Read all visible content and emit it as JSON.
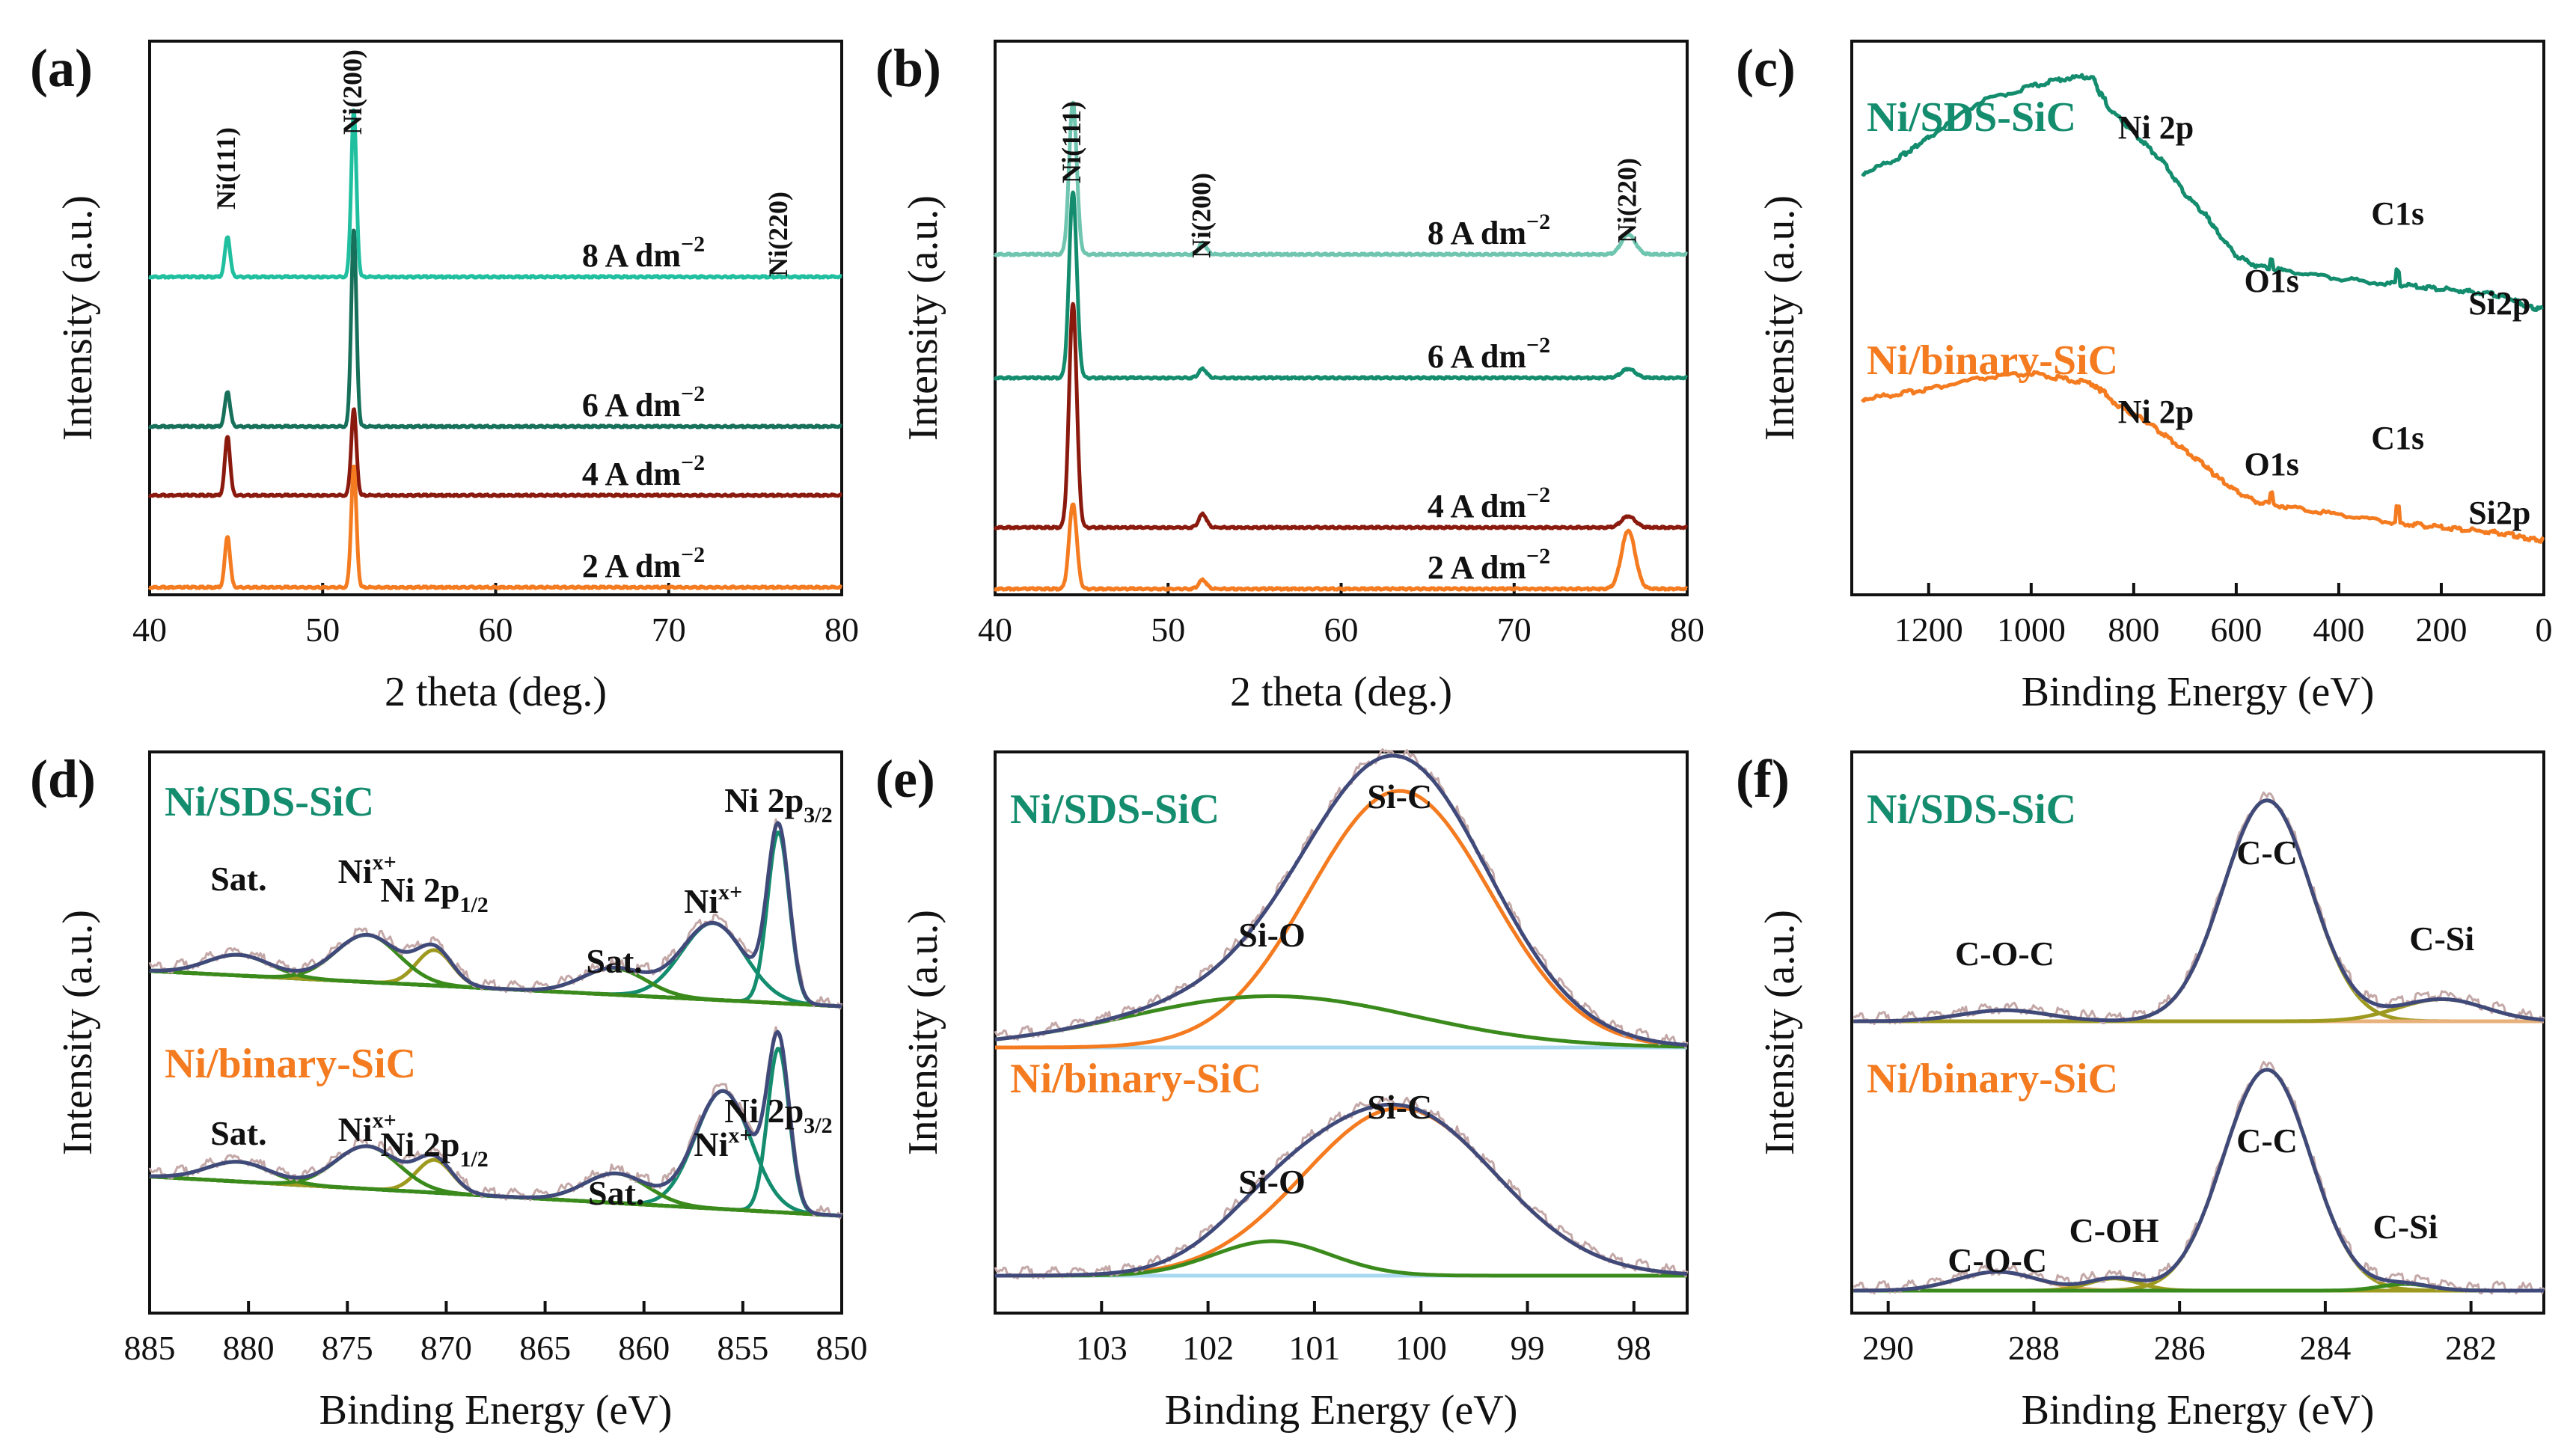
{
  "figure": {
    "panels": [
      {
        "id": "a",
        "label": "(a)",
        "xlabel": "2 theta (deg.)",
        "ylabel": "Intensity (a.u.)"
      },
      {
        "id": "b",
        "label": "(b)",
        "xlabel": "2 theta (deg.)",
        "ylabel": "Intensity (a.u.)"
      },
      {
        "id": "c",
        "label": "(c)",
        "xlabel": "Binding Energy (eV)",
        "ylabel": "Intensity (a.u.)"
      },
      {
        "id": "d",
        "label": "(d)",
        "xlabel": "Binding Energy (eV)",
        "ylabel": "Intensity (a.u.)"
      },
      {
        "id": "e",
        "label": "(e)",
        "xlabel": "Binding Energy (eV)",
        "ylabel": "Intensity (a.u.)"
      },
      {
        "id": "f",
        "label": "(f)",
        "xlabel": "Binding Energy (eV)",
        "ylabel": "Intensity (a.u.)"
      }
    ]
  },
  "colors": {
    "teal": "#1fbf9f",
    "darkteal": "#17705a",
    "darkred": "#8b1a0e",
    "orange": "#f47b20",
    "lightteal": "#6fc5b0",
    "seagreen": "#148c6e",
    "fitnavy": "#404a7a",
    "green": "#3a8a1c",
    "olive": "#9e9a20",
    "lightblue": "#a8d8f0",
    "raw": "#c4a8a8",
    "gray": "#b8bcbc",
    "salmon": "#e8b07a"
  },
  "chart_data": [
    {
      "panel": "a",
      "type": "line",
      "title": "",
      "xlabel": "2 theta (deg.)",
      "ylabel": "Intensity (a.u.)",
      "xlim": [
        40,
        80
      ],
      "xticks": [
        "40",
        "50",
        "60",
        "70",
        "80"
      ],
      "peak_labels": [
        "Ni(111)",
        "Ni(200)",
        "Ni(220)"
      ],
      "peak_positions": [
        44.5,
        51.8,
        76.4
      ],
      "series": [
        {
          "name": "8 A dm−2",
          "label": "8 A dm",
          "sup": "−2",
          "color": "#1fbf9f",
          "peaks": [
            {
              "x": 44.5,
              "h": 0.15
            },
            {
              "x": 51.8,
              "h": 0.62
            }
          ]
        },
        {
          "name": "6 A dm−2",
          "label": "6 A dm",
          "sup": "−2",
          "color": "#17705a",
          "peaks": [
            {
              "x": 44.5,
              "h": 0.13
            },
            {
              "x": 51.8,
              "h": 0.73
            }
          ]
        },
        {
          "name": "4 A dm−2",
          "label": "4 A dm",
          "sup": "−2",
          "color": "#8b1a0e",
          "peaks": [
            {
              "x": 44.5,
              "h": 0.22
            },
            {
              "x": 51.8,
              "h": 0.32
            }
          ]
        },
        {
          "name": "2 A dm−2",
          "label": "2 A dm",
          "sup": "−2",
          "color": "#f47b20",
          "peaks": [
            {
              "x": 44.5,
              "h": 0.19
            },
            {
              "x": 51.8,
              "h": 0.45
            }
          ]
        }
      ]
    },
    {
      "panel": "b",
      "type": "line",
      "title": "",
      "xlabel": "2 theta (deg.)",
      "ylabel": "Intensity (a.u.)",
      "xlim": [
        40,
        80
      ],
      "xticks": [
        "40",
        "50",
        "60",
        "70",
        "80"
      ],
      "peak_labels": [
        "Ni(111)",
        "Ni(200)",
        "Ni(220)"
      ],
      "peak_positions": [
        44.5,
        52.0,
        76.6
      ],
      "series": [
        {
          "name": "8 A dm−2",
          "label": "8 A dm",
          "sup": "−2",
          "color": "#6fc5b0",
          "peaks": [
            {
              "x": 44.5,
              "h": 0.68
            },
            {
              "x": 52.0,
              "h": 0.05
            },
            {
              "x": 76.6,
              "h": 0.09
            }
          ]
        },
        {
          "name": "6 A dm−2",
          "label": "6 A dm",
          "sup": "−2",
          "color": "#148c6e",
          "peaks": [
            {
              "x": 44.5,
              "h": 0.83
            },
            {
              "x": 52.0,
              "h": 0.04
            },
            {
              "x": 76.6,
              "h": 0.04
            }
          ]
        },
        {
          "name": "4 A dm−2",
          "label": "4 A dm",
          "sup": "−2",
          "color": "#8b1a0e",
          "peaks": [
            {
              "x": 44.5,
              "h": 1.0
            },
            {
              "x": 52.0,
              "h": 0.06
            },
            {
              "x": 76.6,
              "h": 0.05
            }
          ]
        },
        {
          "name": "2 A dm−2",
          "label": "2 A dm",
          "sup": "−2",
          "color": "#f47b20",
          "peaks": [
            {
              "x": 44.5,
              "h": 0.38
            },
            {
              "x": 52.0,
              "h": 0.04
            },
            {
              "x": 76.6,
              "h": 0.26
            }
          ]
        }
      ]
    },
    {
      "panel": "c",
      "type": "line",
      "title": "",
      "xlabel": "Binding Energy (eV)",
      "ylabel": "Intensity (a.u.)",
      "xlim": [
        1350,
        0
      ],
      "xticks": [
        "1200",
        "1000",
        "800",
        "600",
        "400",
        "200",
        "0"
      ],
      "series": [
        {
          "name": "Ni/SDS-SiC",
          "color": "#148c6e",
          "points": [
            [
              1330,
              0.8
            ],
            [
              1260,
              0.83
            ],
            [
              1230,
              0.85
            ],
            [
              1200,
              0.87
            ],
            [
              1100,
              0.94
            ],
            [
              1000,
              0.97
            ],
            [
              940,
              0.985
            ],
            [
              880,
              0.99
            ],
            [
              860,
              0.94
            ],
            [
              820,
              0.9
            ],
            [
              780,
              0.86
            ],
            [
              740,
              0.82
            ],
            [
              700,
              0.76
            ],
            [
              660,
              0.72
            ],
            [
              640,
              0.69
            ],
            [
              600,
              0.64
            ],
            [
              560,
              0.62
            ],
            [
              500,
              0.61
            ],
            [
              400,
              0.595
            ],
            [
              300,
              0.585
            ],
            [
              250,
              0.58
            ],
            [
              200,
              0.575
            ],
            [
              150,
              0.57
            ],
            [
              100,
              0.565
            ],
            [
              60,
              0.555
            ],
            [
              30,
              0.54
            ],
            [
              0,
              0.535
            ]
          ],
          "annotations": [
            {
              "text": "Ni 2p",
              "x": 860
            },
            {
              "text": "O1s",
              "x": 531
            },
            {
              "text": "C1s",
              "x": 285
            },
            {
              "text": "Si2p",
              "x": 101
            }
          ]
        },
        {
          "name": "Ni/binary-SiC",
          "color": "#f47b20",
          "points": [
            [
              1330,
              0.36
            ],
            [
              1260,
              0.37
            ],
            [
              1200,
              0.38
            ],
            [
              1100,
              0.4
            ],
            [
              1000,
              0.41
            ],
            [
              940,
              0.4
            ],
            [
              880,
              0.39
            ],
            [
              860,
              0.37
            ],
            [
              820,
              0.34
            ],
            [
              780,
              0.32
            ],
            [
              740,
              0.29
            ],
            [
              700,
              0.26
            ],
            [
              660,
              0.23
            ],
            [
              640,
              0.21
            ],
            [
              600,
              0.18
            ],
            [
              560,
              0.16
            ],
            [
              500,
              0.15
            ],
            [
              400,
              0.135
            ],
            [
              300,
              0.12
            ],
            [
              250,
              0.115
            ],
            [
              200,
              0.11
            ],
            [
              150,
              0.105
            ],
            [
              100,
              0.1
            ],
            [
              60,
              0.095
            ],
            [
              30,
              0.088
            ],
            [
              0,
              0.085
            ]
          ],
          "annotations": [
            {
              "text": "Ni 2p",
              "x": 860
            },
            {
              "text": "O1s",
              "x": 531
            },
            {
              "text": "C1s",
              "x": 285
            },
            {
              "text": "Si2p",
              "x": 101
            }
          ]
        }
      ]
    },
    {
      "panel": "d",
      "type": "line",
      "title": "",
      "xlabel": "Binding Energy (eV)",
      "ylabel": "Intensity (a.u.)",
      "xlim": [
        885,
        850
      ],
      "xticks": [
        "885",
        "880",
        "875",
        "870",
        "865",
        "860",
        "855",
        "850"
      ],
      "series": [
        {
          "name": "Ni/SDS-SiC",
          "color": "#148c6e",
          "components": [
            {
              "x": 853.2,
              "h": 0.58,
              "w": 0.55
            },
            {
              "x": 856.5,
              "h": 0.26,
              "w": 1.6
            },
            {
              "x": 861.5,
              "h": 0.09,
              "w": 1.6
            },
            {
              "x": 870.6,
              "h": 0.12,
              "w": 0.9
            },
            {
              "x": 874.0,
              "h": 0.16,
              "w": 1.6
            },
            {
              "x": 880.5,
              "h": 0.07,
              "w": 1.6
            }
          ],
          "peak_labels": [
            {
              "text": "Sat.",
              "x": 880.5
            },
            {
              "text": "Ni",
              "sup": "x+",
              "x": 874.0
            },
            {
              "text": "Ni 2p",
              "sub": "1/2",
              "x": 870.6
            },
            {
              "text": "Sat.",
              "x": 861.5
            },
            {
              "text": "Ni",
              "sup": "x+",
              "x": 856.5
            },
            {
              "text": "Ni 2p",
              "sub": "3/2",
              "x": 853.2
            }
          ]
        },
        {
          "name": "Ni/binary-SiC",
          "color": "#f47b20",
          "components": [
            {
              "x": 853.2,
              "h": 0.5,
              "w": 0.55
            },
            {
              "x": 856.0,
              "h": 0.36,
              "w": 1.4
            },
            {
              "x": 861.4,
              "h": 0.09,
              "w": 1.6
            },
            {
              "x": 870.6,
              "h": 0.1,
              "w": 0.9
            },
            {
              "x": 874.0,
              "h": 0.13,
              "w": 1.6
            },
            {
              "x": 880.5,
              "h": 0.06,
              "w": 1.6
            }
          ],
          "peak_labels": [
            {
              "text": "Sat.",
              "x": 880.5
            },
            {
              "text": "Ni",
              "sup": "x+",
              "x": 874.0
            },
            {
              "text": "Ni 2p",
              "sub": "1/2",
              "x": 870.6
            },
            {
              "text": "Sat.",
              "x": 861.4
            },
            {
              "text": "Ni",
              "sup": "x+",
              "x": 856.0
            },
            {
              "text": "Ni 2p",
              "sub": "3/2",
              "x": 853.2
            }
          ]
        }
      ]
    },
    {
      "panel": "e",
      "type": "line",
      "title": "",
      "xlabel": "Binding Energy (eV)",
      "ylabel": "Intensity (a.u.)",
      "xlim": [
        104,
        97.5
      ],
      "xticks": [
        "103",
        "102",
        "101",
        "100",
        "99",
        "98"
      ],
      "series": [
        {
          "name": "Ni/SDS-SiC",
          "color": "#148c6e",
          "components": [
            {
              "name": "Si-C",
              "x": 100.2,
              "h": 1.0,
              "w": 0.85
            },
            {
              "name": "Si-O",
              "x": 101.4,
              "h": 0.2,
              "w": 1.35
            }
          ],
          "peak_labels": [
            {
              "text": "Si-C",
              "x": 100.2
            },
            {
              "text": "Si-O",
              "x": 101.4
            }
          ]
        },
        {
          "name": "Ni/binary-SiC",
          "color": "#f47b20",
          "components": [
            {
              "name": "Si-C",
              "x": 100.2,
              "h": 0.68,
              "w": 0.9
            },
            {
              "name": "Si-O",
              "x": 101.4,
              "h": 0.14,
              "w": 0.55
            }
          ],
          "peak_labels": [
            {
              "text": "Si-C",
              "x": 100.2
            },
            {
              "text": "Si-O",
              "x": 101.4
            }
          ]
        }
      ]
    },
    {
      "panel": "f",
      "type": "line",
      "title": "",
      "xlabel": "Binding Energy (eV)",
      "ylabel": "Intensity (a.u.)",
      "xlim": [
        290.5,
        281
      ],
      "xticks": [
        "290",
        "288",
        "286",
        "284",
        "282"
      ],
      "series": [
        {
          "name": "Ni/SDS-SiC",
          "color": "#148c6e",
          "components": [
            {
              "name": "C-C",
              "x": 284.8,
              "h": 1.0,
              "w": 0.6
            },
            {
              "name": "C-O-C",
              "x": 288.4,
              "h": 0.05,
              "w": 0.6
            },
            {
              "name": "C-Si",
              "x": 282.4,
              "h": 0.1,
              "w": 0.6
            }
          ],
          "peak_labels": [
            {
              "text": "C-O-C",
              "x": 288.4
            },
            {
              "text": "C-C",
              "x": 284.8
            },
            {
              "text": "C-Si",
              "x": 282.4
            }
          ]
        },
        {
          "name": "Ni/binary-SiC",
          "color": "#f47b20",
          "components": [
            {
              "name": "C-C",
              "x": 284.8,
              "h": 1.0,
              "w": 0.6
            },
            {
              "name": "C-O-C",
              "x": 288.5,
              "h": 0.085,
              "w": 0.55
            },
            {
              "name": "C-OH",
              "x": 286.9,
              "h": 0.055,
              "w": 0.35
            },
            {
              "name": "C-Si",
              "x": 282.9,
              "h": 0.03,
              "w": 0.35
            }
          ],
          "peak_labels": [
            {
              "text": "C-O-C",
              "x": 288.5
            },
            {
              "text": "C-OH",
              "x": 286.9
            },
            {
              "text": "C-C",
              "x": 284.8
            },
            {
              "text": "C-Si",
              "x": 282.9
            }
          ]
        }
      ]
    }
  ]
}
